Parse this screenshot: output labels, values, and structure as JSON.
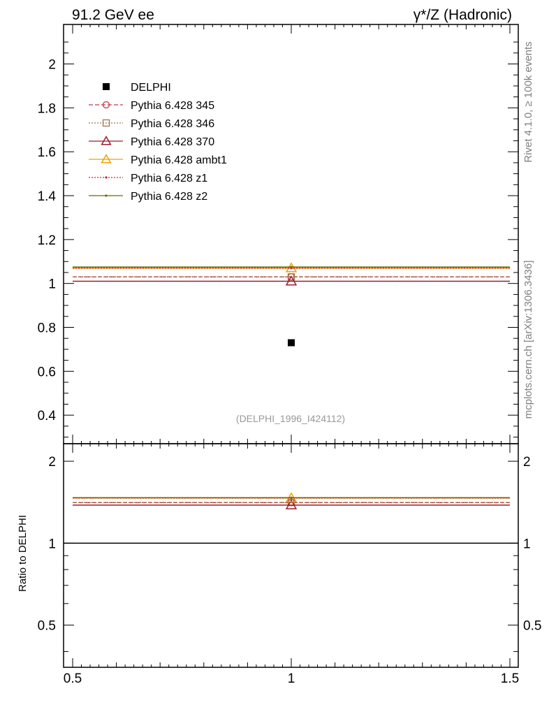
{
  "header": {
    "left": "91.2 GeV ee",
    "right": "γ*/Z (Hadronic)"
  },
  "side_labels": {
    "rivet": "Rivet 4.1.0, ≥ 100k events",
    "mcplots": "mcplots.cern.ch [arXiv:1306.3436]"
  },
  "watermark": "(DELPHI_1996_I424112)",
  "colors": {
    "data": "#000000",
    "p345": "#c0394b",
    "p346": "#a0764a",
    "p370": "#9b1b30",
    "ambt1": "#f0a000",
    "z1": "#cc2020",
    "z2": "#6b6b00"
  },
  "chart_data": [
    {
      "panel": "main",
      "type": "line",
      "xlim": [
        0.5,
        1.5
      ],
      "ylim": [
        0.27,
        2.18
      ],
      "yticks": [
        0.4,
        0.6,
        0.8,
        1,
        1.2,
        1.4,
        1.6,
        1.8,
        2
      ],
      "ytick_labels": [
        "0.4",
        "0.6",
        "0.8",
        "1",
        "1.2",
        "1.4",
        "1.6",
        "1.8",
        "2"
      ],
      "legend_position": "top-left",
      "series": [
        {
          "key": "data",
          "name": "DELPHI",
          "marker": "filled-square",
          "line": "none",
          "x": [
            1
          ],
          "y": [
            0.73
          ]
        },
        {
          "key": "p345",
          "name": "Pythia 6.428 345",
          "marker": "open-circle",
          "line": "dashed",
          "x": [
            1
          ],
          "y": [
            1.03
          ]
        },
        {
          "key": "p346",
          "name": "Pythia 6.428 346",
          "marker": "open-square",
          "line": "dotted",
          "x": [
            1
          ],
          "y": [
            1.03
          ]
        },
        {
          "key": "p370",
          "name": "Pythia 6.428 370",
          "marker": "open-triangle",
          "line": "solid",
          "x": [
            1
          ],
          "y": [
            1.01
          ]
        },
        {
          "key": "ambt1",
          "name": "Pythia 6.428 ambt1",
          "marker": "open-triangle",
          "line": "solid",
          "x": [
            1
          ],
          "y": [
            1.07
          ]
        },
        {
          "key": "z1",
          "name": "Pythia 6.428 z1",
          "marker": "dot",
          "line": "dotted",
          "x": [
            1
          ],
          "y": [
            1.07
          ]
        },
        {
          "key": "z2",
          "name": "Pythia 6.428 z2",
          "marker": "dot",
          "line": "solid",
          "x": [
            1
          ],
          "y": [
            1.075
          ]
        }
      ]
    },
    {
      "panel": "ratio",
      "type": "line",
      "ylabel": "Ratio to DELPHI",
      "xlim": [
        0.5,
        1.5
      ],
      "ylim": [
        0.35,
        2.32
      ],
      "log_y": true,
      "xticks": [
        0.5,
        1,
        1.5
      ],
      "xtick_labels": [
        "0.5",
        "1",
        "1.5"
      ],
      "yticks": [
        0.5,
        1,
        2
      ],
      "ytick_labels": [
        "0.5",
        "1",
        "2"
      ],
      "reference_line": 1,
      "series": [
        {
          "key": "p345",
          "x": [
            1
          ],
          "y": [
            1.41
          ]
        },
        {
          "key": "p346",
          "x": [
            1
          ],
          "y": [
            1.41
          ]
        },
        {
          "key": "p370",
          "x": [
            1
          ],
          "y": [
            1.38
          ]
        },
        {
          "key": "ambt1",
          "x": [
            1
          ],
          "y": [
            1.465
          ]
        },
        {
          "key": "z1",
          "x": [
            1
          ],
          "y": [
            1.465
          ]
        },
        {
          "key": "z2",
          "x": [
            1
          ],
          "y": [
            1.47
          ]
        }
      ]
    }
  ]
}
